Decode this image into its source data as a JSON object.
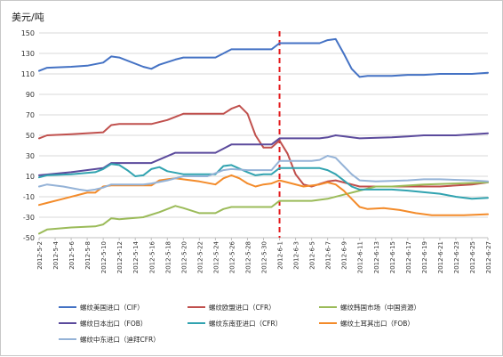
{
  "chart_data": {
    "type": "line",
    "title": "",
    "ylabel": "美元/吨",
    "xlabel": "",
    "ylim": [
      -50,
      150
    ],
    "yticks": [
      150,
      130,
      110,
      90,
      70,
      50,
      30,
      10,
      -10,
      -30,
      -50
    ],
    "grid": "horizontal",
    "legend_position": "bottom",
    "x_labels": [
      "2012-5-2",
      "2012-5-4",
      "2012-5-6",
      "2012-5-8",
      "2012-5-10",
      "2012-5-12",
      "2012-5-14",
      "2012-5-16",
      "2012-5-18",
      "2012-5-20",
      "2012-5-22",
      "2012-5-24",
      "2012-5-26",
      "2012-5-28",
      "2012-5-30",
      "2012-6-1",
      "2012-6-3",
      "2012-6-5",
      "2012-6-7",
      "2012-6-9",
      "2012-6-11",
      "2012-6-13",
      "2012-6-15",
      "2012-6-17",
      "2012-6-19",
      "2012-6-21",
      "2012-6-23",
      "2012-6-25",
      "2012-6-27"
    ],
    "x_range": [
      0,
      56
    ],
    "reference_line": {
      "x": 30,
      "color": "#e41a1c",
      "style": "dashed"
    },
    "series": [
      {
        "name": "螺纹美国进口（CIF）",
        "color": "#4472c4",
        "points": [
          [
            0,
            113
          ],
          [
            1,
            116
          ],
          [
            4,
            117
          ],
          [
            6,
            118
          ],
          [
            8,
            121
          ],
          [
            9,
            127
          ],
          [
            10,
            126
          ],
          [
            13,
            117
          ],
          [
            14,
            115
          ],
          [
            15,
            119
          ],
          [
            17,
            124
          ],
          [
            18,
            126
          ],
          [
            22,
            126
          ],
          [
            23,
            130
          ],
          [
            24,
            134
          ],
          [
            28,
            134
          ],
          [
            29,
            134
          ],
          [
            30,
            140
          ],
          [
            35,
            140
          ],
          [
            36,
            143
          ],
          [
            37,
            144
          ],
          [
            38,
            130
          ],
          [
            39,
            115
          ],
          [
            40,
            107
          ],
          [
            41,
            108
          ],
          [
            44,
            108
          ],
          [
            46,
            109
          ],
          [
            48,
            109
          ],
          [
            50,
            110
          ],
          [
            54,
            110
          ],
          [
            56,
            111
          ]
        ]
      },
      {
        "name": "螺纹欧盟进口（CFR）",
        "color": "#c0504d",
        "points": [
          [
            0,
            47
          ],
          [
            1,
            50
          ],
          [
            4,
            51
          ],
          [
            8,
            53
          ],
          [
            9,
            60
          ],
          [
            10,
            61
          ],
          [
            14,
            61
          ],
          [
            16,
            65
          ],
          [
            18,
            71
          ],
          [
            21,
            71
          ],
          [
            23,
            71
          ],
          [
            24,
            76
          ],
          [
            25,
            79
          ],
          [
            26,
            71
          ],
          [
            27,
            50
          ],
          [
            28,
            38
          ],
          [
            29,
            38
          ],
          [
            30,
            45
          ],
          [
            31,
            32
          ],
          [
            32,
            12
          ],
          [
            33,
            2
          ],
          [
            34,
            0
          ],
          [
            36,
            5
          ],
          [
            37,
            6
          ],
          [
            38,
            4
          ],
          [
            40,
            0
          ],
          [
            44,
            0
          ],
          [
            46,
            0
          ],
          [
            50,
            0
          ],
          [
            54,
            2
          ],
          [
            56,
            4
          ]
        ]
      },
      {
        "name": "螺纹韩国市场（中国资源）",
        "color": "#9bbb59",
        "points": [
          [
            0,
            -46
          ],
          [
            1,
            -42
          ],
          [
            4,
            -40
          ],
          [
            7,
            -39
          ],
          [
            8,
            -37
          ],
          [
            9,
            -31
          ],
          [
            10,
            -32
          ],
          [
            13,
            -30
          ],
          [
            15,
            -25
          ],
          [
            17,
            -19
          ],
          [
            18,
            -21
          ],
          [
            20,
            -26
          ],
          [
            22,
            -26
          ],
          [
            23,
            -22
          ],
          [
            24,
            -20
          ],
          [
            28,
            -20
          ],
          [
            29,
            -20
          ],
          [
            30,
            -14
          ],
          [
            34,
            -14
          ],
          [
            36,
            -12
          ],
          [
            38,
            -8
          ],
          [
            40,
            -4
          ],
          [
            42,
            0
          ],
          [
            44,
            0
          ],
          [
            48,
            2
          ],
          [
            52,
            3
          ],
          [
            56,
            4
          ]
        ]
      },
      {
        "name": "螺纹日本出口（FOB）",
        "color": "#5b4a9c",
        "points": [
          [
            0,
            11
          ],
          [
            4,
            14
          ],
          [
            8,
            18
          ],
          [
            9,
            23
          ],
          [
            13,
            23
          ],
          [
            14,
            23
          ],
          [
            17,
            33
          ],
          [
            21,
            33
          ],
          [
            22,
            33
          ],
          [
            24,
            41
          ],
          [
            28,
            41
          ],
          [
            29,
            41
          ],
          [
            30,
            47
          ],
          [
            35,
            47
          ],
          [
            36,
            48
          ],
          [
            37,
            50
          ],
          [
            40,
            47
          ],
          [
            44,
            48
          ],
          [
            46,
            49
          ],
          [
            48,
            50
          ],
          [
            52,
            50
          ],
          [
            56,
            52
          ]
        ]
      },
      {
        "name": "螺纹东南亚进口（CFR）",
        "color": "#31a3b0",
        "points": [
          [
            0,
            9
          ],
          [
            1,
            11
          ],
          [
            4,
            12
          ],
          [
            7,
            14
          ],
          [
            8,
            17
          ],
          [
            9,
            22
          ],
          [
            10,
            21
          ],
          [
            11,
            16
          ],
          [
            12,
            10
          ],
          [
            13,
            11
          ],
          [
            14,
            17
          ],
          [
            15,
            19
          ],
          [
            16,
            15
          ],
          [
            18,
            12
          ],
          [
            21,
            12
          ],
          [
            22,
            12
          ],
          [
            23,
            20
          ],
          [
            24,
            21
          ],
          [
            26,
            14
          ],
          [
            27,
            11
          ],
          [
            28,
            12
          ],
          [
            29,
            12
          ],
          [
            30,
            18
          ],
          [
            31,
            18
          ],
          [
            35,
            18
          ],
          [
            36,
            16
          ],
          [
            37,
            12
          ],
          [
            38,
            6
          ],
          [
            39,
            0
          ],
          [
            40,
            -3
          ],
          [
            44,
            -3
          ],
          [
            46,
            -4
          ],
          [
            50,
            -7
          ],
          [
            52,
            -10
          ],
          [
            54,
            -12
          ],
          [
            56,
            -11
          ]
        ]
      },
      {
        "name": "螺纹土耳其出口（FOB）",
        "color": "#f38b2a",
        "points": [
          [
            0,
            -18
          ],
          [
            1,
            -16
          ],
          [
            3,
            -12
          ],
          [
            6,
            -6
          ],
          [
            7,
            -6
          ],
          [
            8,
            0
          ],
          [
            9,
            1
          ],
          [
            13,
            1
          ],
          [
            14,
            1
          ],
          [
            15,
            6
          ],
          [
            16,
            7
          ],
          [
            17,
            8
          ],
          [
            20,
            5
          ],
          [
            22,
            2
          ],
          [
            23,
            8
          ],
          [
            24,
            11
          ],
          [
            25,
            8
          ],
          [
            26,
            3
          ],
          [
            27,
            0
          ],
          [
            28,
            2
          ],
          [
            29,
            3
          ],
          [
            30,
            6
          ],
          [
            31,
            4
          ],
          [
            33,
            0
          ],
          [
            35,
            2
          ],
          [
            36,
            4
          ],
          [
            37,
            2
          ],
          [
            38,
            -4
          ],
          [
            39,
            -12
          ],
          [
            40,
            -20
          ],
          [
            41,
            -22
          ],
          [
            43,
            -21
          ],
          [
            45,
            -23
          ],
          [
            47,
            -26
          ],
          [
            49,
            -28
          ],
          [
            51,
            -28
          ],
          [
            53,
            -28
          ],
          [
            56,
            -27
          ]
        ]
      },
      {
        "name": "螺纹中东进口（迪拜CFR）",
        "color": "#95b3d7",
        "points": [
          [
            0,
            0
          ],
          [
            1,
            2
          ],
          [
            3,
            0
          ],
          [
            5,
            -3
          ],
          [
            6,
            -4
          ],
          [
            7,
            -3
          ],
          [
            8,
            -1
          ],
          [
            9,
            2
          ],
          [
            10,
            2
          ],
          [
            13,
            2
          ],
          [
            14,
            3
          ],
          [
            16,
            6
          ],
          [
            17,
            8
          ],
          [
            18,
            10
          ],
          [
            20,
            10
          ],
          [
            21,
            10
          ],
          [
            23,
            16
          ],
          [
            24,
            17
          ],
          [
            26,
            16
          ],
          [
            28,
            16
          ],
          [
            29,
            16
          ],
          [
            30,
            25
          ],
          [
            31,
            25
          ],
          [
            34,
            25
          ],
          [
            35,
            26
          ],
          [
            36,
            30
          ],
          [
            37,
            28
          ],
          [
            38,
            20
          ],
          [
            39,
            12
          ],
          [
            40,
            6
          ],
          [
            42,
            5
          ],
          [
            46,
            6
          ],
          [
            48,
            7
          ],
          [
            50,
            7
          ],
          [
            54,
            6
          ],
          [
            56,
            5
          ]
        ]
      }
    ]
  }
}
